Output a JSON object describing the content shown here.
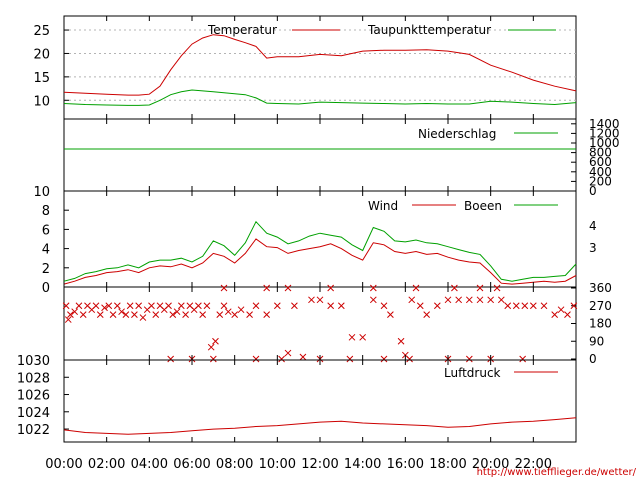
{
  "source_url": "http://www.tiefflieger.de/wetter/",
  "colors": {
    "red": "#cc0000",
    "green": "#00a000",
    "grid": "#b4b4b4",
    "axis": "#000000"
  },
  "time_axis": {
    "labels": [
      "00:00",
      "02:00",
      "04:00",
      "06:00",
      "08:00",
      "10:00",
      "12:00",
      "14:00",
      "16:00",
      "18:00",
      "20:00",
      "22:00"
    ],
    "range_hours": [
      0,
      24
    ]
  },
  "chart_data": [
    {
      "type": "line",
      "id": "temperature",
      "x_hours": [
        0,
        1,
        2,
        3,
        3.5,
        4,
        4.5,
        5,
        5.5,
        6,
        6.5,
        7,
        7.5,
        8,
        8.5,
        9,
        9.5,
        10,
        11,
        12,
        13,
        14,
        15,
        16,
        17,
        18,
        19,
        20,
        21,
        22,
        23,
        24
      ],
      "series": [
        {
          "name": "Temperatur",
          "color": "#cc0000",
          "values": [
            11.7,
            11.5,
            11.3,
            11.1,
            11.1,
            11.3,
            13,
            16.5,
            19.5,
            22,
            23.3,
            24,
            23.8,
            23,
            22.3,
            21.5,
            19,
            19.3,
            19.3,
            19.8,
            19.5,
            20.5,
            20.7,
            20.7,
            20.8,
            20.5,
            19.8,
            17.5,
            16,
            14.3,
            13,
            12
          ]
        },
        {
          "name": "Taupunkttemperatur",
          "color": "#00a000",
          "values": [
            9.3,
            9.1,
            9,
            8.9,
            8.9,
            9,
            10,
            11.2,
            11.8,
            12.2,
            12,
            11.8,
            11.6,
            11.4,
            11.2,
            10.5,
            9.4,
            9.3,
            9.2,
            9.6,
            9.5,
            9.4,
            9.3,
            9.2,
            9.3,
            9.2,
            9.2,
            9.8,
            9.6,
            9.3,
            9.1,
            9.5
          ]
        }
      ],
      "yticks": [
        10,
        15,
        20,
        25
      ],
      "ylim": [
        6,
        28
      ]
    },
    {
      "type": "line",
      "id": "precipitation",
      "series": [
        {
          "name": "Niederschlag",
          "color": "#00a000",
          "constant_value": 1000
        }
      ],
      "yticks_right": [
        0,
        200,
        400,
        600,
        800,
        1000,
        1200,
        1400
      ],
      "ylim": [
        0,
        1500
      ]
    },
    {
      "type": "line",
      "id": "wind",
      "x_hours": [
        0,
        0.5,
        1,
        1.5,
        2,
        2.5,
        3,
        3.5,
        4,
        4.5,
        5,
        5.5,
        6,
        6.5,
        7,
        7.5,
        8,
        8.5,
        9,
        9.5,
        10,
        10.5,
        11,
        11.5,
        12,
        12.5,
        13,
        13.5,
        14,
        14.5,
        15,
        15.5,
        16,
        16.5,
        17,
        17.5,
        18,
        18.5,
        19,
        19.5,
        20,
        20.5,
        21,
        21.5,
        22,
        22.5,
        23,
        23.5,
        24
      ],
      "series": [
        {
          "name": "Wind",
          "color": "#cc0000",
          "values": [
            0.3,
            0.6,
            1,
            1.2,
            1.5,
            1.6,
            1.8,
            1.5,
            2,
            2.2,
            2.1,
            2.4,
            2,
            2.5,
            3.5,
            3.2,
            2.5,
            3.5,
            5,
            4.2,
            4.1,
            3.5,
            3.8,
            4,
            4.2,
            4.5,
            4,
            3.3,
            2.8,
            4.6,
            4.4,
            3.7,
            3.5,
            3.7,
            3.4,
            3.5,
            3.1,
            2.8,
            2.6,
            2.5,
            1.5,
            0.4,
            0.3,
            0.4,
            0.5,
            0.6,
            0.5,
            0.6,
            1.2
          ]
        },
        {
          "name": "Boeen",
          "color": "#00a000",
          "values": [
            0.6,
            0.9,
            1.4,
            1.6,
            1.9,
            2,
            2.3,
            2,
            2.6,
            2.8,
            2.8,
            3,
            2.6,
            3.2,
            4.8,
            4.3,
            3.3,
            4.6,
            6.8,
            5.6,
            5.2,
            4.5,
            4.8,
            5.3,
            5.6,
            5.4,
            5.2,
            4.4,
            3.8,
            6.2,
            5.8,
            4.8,
            4.7,
            4.9,
            4.6,
            4.5,
            4.2,
            3.9,
            3.6,
            3.4,
            2.2,
            0.8,
            0.6,
            0.8,
            1,
            1,
            1.1,
            1.2,
            2.4
          ]
        }
      ],
      "yticks": [
        0,
        2,
        4,
        6,
        8,
        10
      ],
      "ylim": [
        0,
        10
      ],
      "yticks_right": [
        3,
        4
      ]
    },
    {
      "type": "scatter",
      "id": "wind_direction",
      "series": [
        {
          "name": "",
          "color": "#cc0000",
          "points": [
            [
              0.1,
              270
            ],
            [
              0.2,
              200
            ],
            [
              0.3,
              225
            ],
            [
              0.5,
              240
            ],
            [
              0.7,
              270
            ],
            [
              0.9,
              225
            ],
            [
              1.1,
              270
            ],
            [
              1.3,
              250
            ],
            [
              1.5,
              270
            ],
            [
              1.7,
              225
            ],
            [
              1.9,
              260
            ],
            [
              2.1,
              270
            ],
            [
              2.3,
              225
            ],
            [
              2.5,
              270
            ],
            [
              2.7,
              240
            ],
            [
              2.9,
              225
            ],
            [
              3.1,
              270
            ],
            [
              3.3,
              225
            ],
            [
              3.5,
              270
            ],
            [
              3.7,
              210
            ],
            [
              3.9,
              250
            ],
            [
              4.1,
              270
            ],
            [
              4.3,
              225
            ],
            [
              4.5,
              270
            ],
            [
              4.7,
              250
            ],
            [
              4.9,
              270
            ],
            [
              5.1,
              225
            ],
            [
              5.3,
              240
            ],
            [
              5.5,
              270
            ],
            [
              5.7,
              225
            ],
            [
              5.9,
              270
            ],
            [
              6.1,
              250
            ],
            [
              6.3,
              270
            ],
            [
              6.5,
              225
            ],
            [
              6.7,
              270
            ],
            [
              6.9,
              60
            ],
            [
              7.1,
              90
            ],
            [
              7.3,
              225
            ],
            [
              7.5,
              270
            ],
            [
              7.7,
              240
            ],
            [
              8,
              225
            ],
            [
              8.3,
              250
            ],
            [
              8.7,
              225
            ],
            [
              9,
              270
            ],
            [
              9.5,
              225
            ],
            [
              10,
              270
            ],
            [
              10.5,
              30
            ],
            [
              10.8,
              270
            ],
            [
              11.2,
              10
            ],
            [
              11.6,
              300
            ],
            [
              12,
              300
            ],
            [
              12.5,
              270
            ],
            [
              13,
              270
            ],
            [
              13.5,
              110
            ],
            [
              14,
              110
            ],
            [
              14.5,
              300
            ],
            [
              15,
              270
            ],
            [
              15.3,
              225
            ],
            [
              15.8,
              90
            ],
            [
              16,
              20
            ],
            [
              16.3,
              300
            ],
            [
              16.7,
              270
            ],
            [
              17,
              225
            ],
            [
              17.5,
              270
            ],
            [
              18,
              300
            ],
            [
              18.5,
              300
            ],
            [
              19,
              300
            ],
            [
              19.5,
              300
            ],
            [
              20,
              300
            ],
            [
              20.5,
              300
            ],
            [
              20.8,
              270
            ],
            [
              21.2,
              270
            ],
            [
              21.6,
              270
            ],
            [
              22,
              270
            ],
            [
              22.5,
              270
            ],
            [
              23,
              225
            ],
            [
              23.3,
              250
            ],
            [
              23.6,
              225
            ],
            [
              23.9,
              270
            ],
            [
              7.5,
              360
            ],
            [
              9.5,
              360
            ],
            [
              10.5,
              360
            ],
            [
              12.5,
              360
            ],
            [
              14.5,
              360
            ],
            [
              16.5,
              360
            ],
            [
              18.3,
              360
            ],
            [
              19.5,
              360
            ],
            [
              20.3,
              360
            ],
            [
              5,
              0
            ],
            [
              6,
              0
            ],
            [
              7,
              0
            ],
            [
              9,
              0
            ],
            [
              10.2,
              0
            ],
            [
              12,
              0
            ],
            [
              13.4,
              0
            ],
            [
              15,
              0
            ],
            [
              16.2,
              0
            ],
            [
              18,
              0
            ],
            [
              19,
              0
            ],
            [
              20,
              0
            ],
            [
              21.5,
              0
            ]
          ]
        }
      ],
      "yticks_right": [
        0,
        90,
        180,
        270,
        360
      ],
      "ylim": [
        0,
        360
      ]
    },
    {
      "type": "line",
      "id": "pressure",
      "x_hours": [
        0,
        1,
        2,
        3,
        4,
        5,
        6,
        7,
        8,
        9,
        10,
        11,
        12,
        13,
        14,
        15,
        16,
        17,
        18,
        19,
        20,
        21,
        22,
        23,
        24
      ],
      "series": [
        {
          "name": "Luftdruck",
          "color": "#cc0000",
          "values": [
            1021.9,
            1021.6,
            1021.5,
            1021.4,
            1021.5,
            1021.6,
            1021.8,
            1022,
            1022.1,
            1022.3,
            1022.4,
            1022.6,
            1022.8,
            1022.9,
            1022.7,
            1022.6,
            1022.5,
            1022.4,
            1022.2,
            1022.3,
            1022.6,
            1022.8,
            1022.9,
            1023.1,
            1023.3
          ]
        }
      ],
      "yticks": [
        1022,
        1024,
        1026,
        1028,
        1030
      ],
      "ylim": [
        1020.5,
        1030
      ]
    }
  ]
}
